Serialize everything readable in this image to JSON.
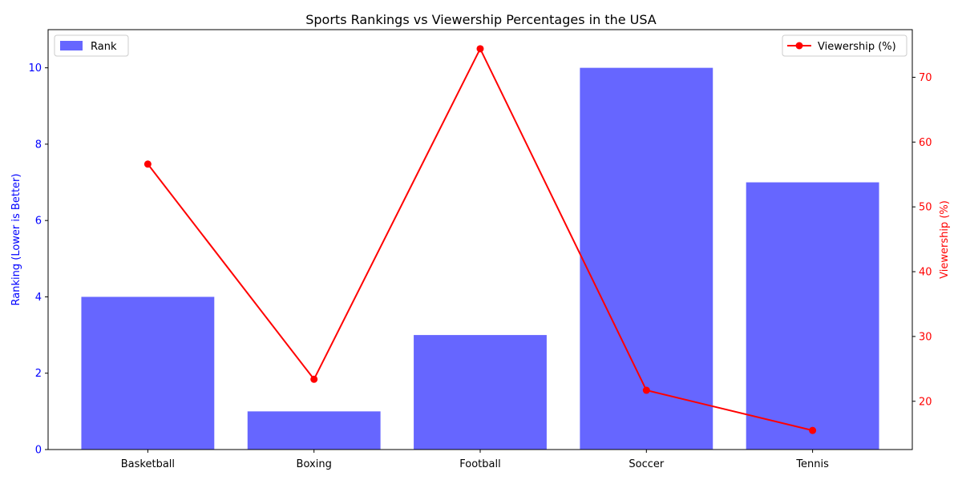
{
  "chart_data": {
    "type": "bar",
    "title": "Sports Rankings vs Viewership Percentages in the USA",
    "categories": [
      "Basketball",
      "Boxing",
      "Football",
      "Soccer",
      "Tennis"
    ],
    "series": [
      {
        "name": "Rank",
        "type": "bar",
        "axis": "left",
        "color": "#6666ff",
        "values": [
          4,
          1,
          3,
          10,
          7
        ]
      },
      {
        "name": "Viewership (%)",
        "type": "line",
        "axis": "right",
        "color": "#ff0000",
        "values": [
          56.6,
          23.4,
          74.4,
          21.7,
          15.5
        ]
      }
    ],
    "y_left": {
      "label": "Ranking (Lower is Better)",
      "color": "#0000ff",
      "ylim": [
        0,
        11
      ],
      "ticks": [
        0,
        2,
        4,
        6,
        8,
        10
      ]
    },
    "y_right": {
      "label": "Viewership (%)",
      "color": "#ff0000",
      "ylim": [
        12.55,
        77.35
      ],
      "ticks": [
        20,
        30,
        40,
        50,
        60,
        70
      ]
    },
    "grid": false,
    "legends": [
      {
        "series": "Rank",
        "placement": "top-left"
      },
      {
        "series": "Viewership (%)",
        "placement": "top-right"
      }
    ]
  }
}
